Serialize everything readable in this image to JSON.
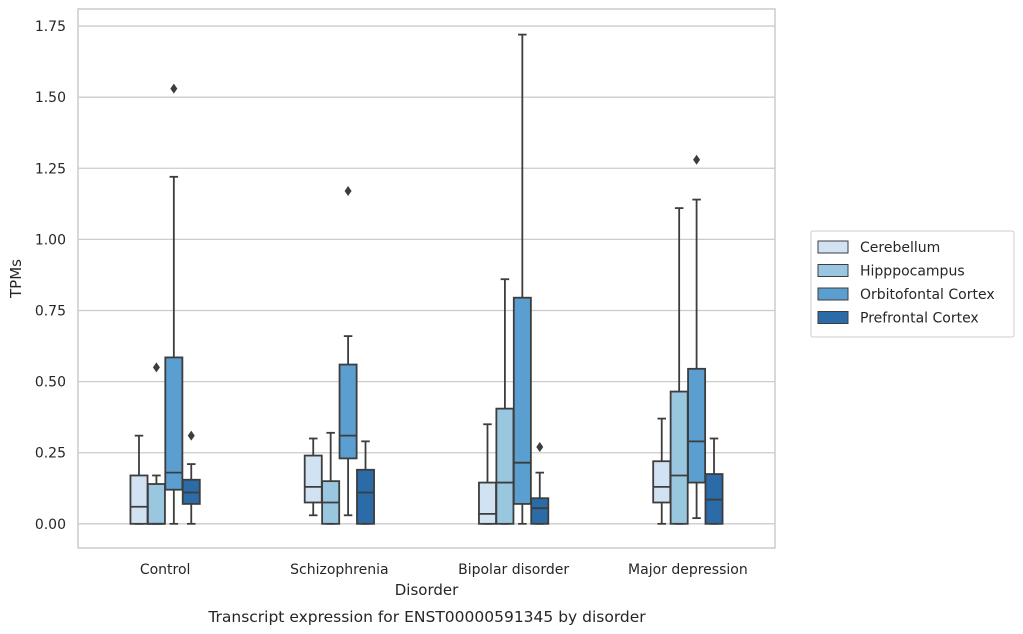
{
  "chart_data": {
    "type": "box",
    "title": "",
    "caption": "Transcript expression for ENST00000591345 by disorder",
    "xlabel": "Disorder",
    "ylabel": "TPMs",
    "ylim": [
      -0.085,
      1.81
    ],
    "yticks": [
      "0.00",
      "0.25",
      "0.50",
      "0.75",
      "1.00",
      "1.25",
      "1.50",
      "1.75"
    ],
    "ytick_values": [
      0,
      0.25,
      0.5,
      0.75,
      1.0,
      1.25,
      1.5,
      1.75
    ],
    "grid": true,
    "legend_position": "right",
    "categories": [
      "Control",
      "Schizophrenia",
      "Bipolar disorder",
      "Major depression"
    ],
    "series": [
      {
        "name": "Cerebellum",
        "color": "#d1e2f2",
        "boxes": [
          {
            "whisker_low": 0.0,
            "q1": 0.0,
            "median": 0.06,
            "q3": 0.17,
            "whisker_high": 0.31,
            "outliers": []
          },
          {
            "whisker_low": 0.03,
            "q1": 0.075,
            "median": 0.13,
            "q3": 0.24,
            "whisker_high": 0.3,
            "outliers": []
          },
          {
            "whisker_low": 0.0,
            "q1": 0.0,
            "median": 0.035,
            "q3": 0.145,
            "whisker_high": 0.35,
            "outliers": []
          },
          {
            "whisker_low": 0.0,
            "q1": 0.075,
            "median": 0.13,
            "q3": 0.22,
            "whisker_high": 0.37,
            "outliers": []
          }
        ]
      },
      {
        "name": "Hipppocampus",
        "color": "#9ac7e0",
        "boxes": [
          {
            "whisker_low": 0.0,
            "q1": 0.0,
            "median": 0.0,
            "q3": 0.14,
            "whisker_high": 0.17,
            "outliers": [
              0.55
            ]
          },
          {
            "whisker_low": 0.0,
            "q1": 0.0,
            "median": 0.075,
            "q3": 0.15,
            "whisker_high": 0.32,
            "outliers": []
          },
          {
            "whisker_low": 0.0,
            "q1": 0.0,
            "median": 0.145,
            "q3": 0.405,
            "whisker_high": 0.86,
            "outliers": []
          },
          {
            "whisker_low": 0.0,
            "q1": 0.0,
            "median": 0.17,
            "q3": 0.465,
            "whisker_high": 1.11,
            "outliers": []
          }
        ]
      },
      {
        "name": "Orbitofontal Cortex",
        "color": "#5a9fcf",
        "boxes": [
          {
            "whisker_low": 0.0,
            "q1": 0.12,
            "median": 0.18,
            "q3": 0.585,
            "whisker_high": 1.22,
            "outliers": [
              1.53
            ]
          },
          {
            "whisker_low": 0.03,
            "q1": 0.23,
            "median": 0.31,
            "q3": 0.56,
            "whisker_high": 0.66,
            "outliers": [
              1.17
            ]
          },
          {
            "whisker_low": 0.0,
            "q1": 0.07,
            "median": 0.215,
            "q3": 0.795,
            "whisker_high": 1.72,
            "outliers": []
          },
          {
            "whisker_low": 0.02,
            "q1": 0.145,
            "median": 0.29,
            "q3": 0.545,
            "whisker_high": 1.14,
            "outliers": [
              1.28
            ]
          }
        ]
      },
      {
        "name": "Prefrontal Cortex",
        "color": "#2b6ba8",
        "boxes": [
          {
            "whisker_low": 0.0,
            "q1": 0.07,
            "median": 0.11,
            "q3": 0.155,
            "whisker_high": 0.21,
            "outliers": [
              0.31
            ]
          },
          {
            "whisker_low": 0.0,
            "q1": 0.0,
            "median": 0.11,
            "q3": 0.19,
            "whisker_high": 0.29,
            "outliers": []
          },
          {
            "whisker_low": 0.0,
            "q1": 0.0,
            "median": 0.055,
            "q3": 0.09,
            "whisker_high": 0.18,
            "outliers": [
              0.27
            ]
          },
          {
            "whisker_low": 0.0,
            "q1": 0.0,
            "median": 0.085,
            "q3": 0.175,
            "whisker_high": 0.3,
            "outliers": []
          }
        ]
      }
    ]
  }
}
